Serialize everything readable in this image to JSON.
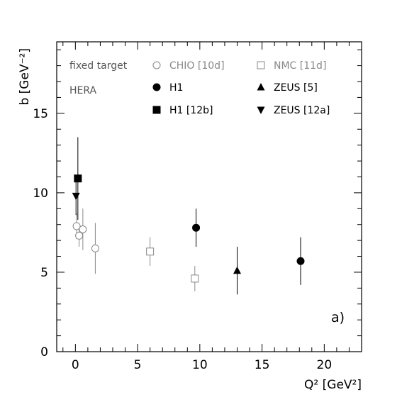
{
  "chart_data": {
    "type": "scatter",
    "xlabel": "Q² [GeV²]",
    "ylabel": "b [GeV⁻²]",
    "xlim": [
      -1.5,
      23
    ],
    "ylim": [
      0,
      19.5
    ],
    "xticks": [
      0,
      5,
      10,
      15,
      20
    ],
    "yticks": [
      0,
      5,
      10,
      15
    ],
    "grid": false,
    "legend_placement": "top",
    "panel_tag": "a)",
    "legend_groups": [
      {
        "label": "fixed target",
        "color": "#555555"
      },
      {
        "label": "HERA",
        "color": "#555555"
      }
    ],
    "series": [
      {
        "name": "CHIO [10d]",
        "group": "fixed target",
        "marker": "circle-open",
        "color": "#888888",
        "points": [
          {
            "x": 0.1,
            "y": 7.9,
            "err": 0.8
          },
          {
            "x": 0.3,
            "y": 7.3,
            "err": 0.7
          },
          {
            "x": 0.6,
            "y": 7.7,
            "err": 1.3
          },
          {
            "x": 1.6,
            "y": 6.5,
            "err": 1.6
          }
        ]
      },
      {
        "name": "NMC [11d]",
        "group": "fixed target",
        "marker": "square-open",
        "color": "#888888",
        "points": [
          {
            "x": 6.0,
            "y": 6.3,
            "err": 0.9
          },
          {
            "x": 9.6,
            "y": 4.6,
            "err": 0.8
          }
        ]
      },
      {
        "name": "H1",
        "group": "HERA",
        "marker": "circle-filled",
        "color": "#000000",
        "points": [
          {
            "x": 9.7,
            "y": 7.8,
            "err": 1.2
          },
          {
            "x": 18.1,
            "y": 5.7,
            "err": 1.5
          }
        ]
      },
      {
        "name": "ZEUS [5]",
        "group": "HERA",
        "marker": "triangle-up",
        "color": "#000000",
        "points": [
          {
            "x": 13.0,
            "y": 5.1,
            "err": 1.5
          }
        ]
      },
      {
        "name": "H1 [12b]",
        "group": "HERA",
        "marker": "square-filled",
        "color": "#000000",
        "points": [
          {
            "x": 0.2,
            "y": 10.9,
            "err": 2.6
          }
        ]
      },
      {
        "name": "ZEUS [12a]",
        "group": "HERA",
        "marker": "triangle-down",
        "color": "#000000",
        "points": [
          {
            "x": 0.05,
            "y": 9.8,
            "err": 1.2
          }
        ]
      }
    ]
  }
}
